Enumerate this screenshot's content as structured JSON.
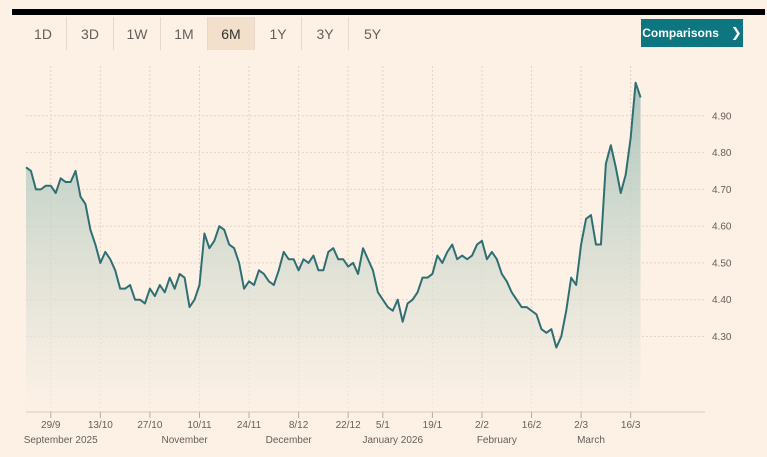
{
  "toolbar": {
    "ranges": [
      "1D",
      "3D",
      "1W",
      "1M",
      "6M",
      "1Y",
      "3Y",
      "5Y"
    ],
    "active_range": "6M",
    "comparisons_label": "Comparisons",
    "comparisons_icon": "chevron-right-icon"
  },
  "colors": {
    "background": "#fdf1e6",
    "line": "#2f6f73",
    "button": "#0d7680",
    "active_tab": "#f2dfcc"
  },
  "chart_data": {
    "type": "area",
    "title": "",
    "xlabel": "",
    "ylabel": "",
    "ylim": [
      4.1,
      5.0
    ],
    "y_ticks": [
      4.3,
      4.4,
      4.5,
      4.6,
      4.7,
      4.8,
      4.9
    ],
    "y_tick_labels": [
      "4.30",
      "4.40",
      "4.50",
      "4.60",
      "4.70",
      "4.80",
      "4.90"
    ],
    "x_index_range": [
      0,
      137
    ],
    "x_ticks": [
      {
        "index": 5,
        "label": "29/9"
      },
      {
        "index": 15,
        "label": "13/10"
      },
      {
        "index": 25,
        "label": "27/10"
      },
      {
        "index": 35,
        "label": "10/11"
      },
      {
        "index": 45,
        "label": "24/11"
      },
      {
        "index": 55,
        "label": "8/12"
      },
      {
        "index": 65,
        "label": "22/12"
      },
      {
        "index": 72,
        "label": "5/1"
      },
      {
        "index": 82,
        "label": "19/1"
      },
      {
        "index": 92,
        "label": "2/2"
      },
      {
        "index": 102,
        "label": "16/2"
      },
      {
        "index": 112,
        "label": "2/3"
      },
      {
        "index": 122,
        "label": "16/3"
      }
    ],
    "month_labels": [
      {
        "index": 7,
        "label": "September 2025"
      },
      {
        "index": 32,
        "label": "November"
      },
      {
        "index": 53,
        "label": "December"
      },
      {
        "index": 74,
        "label": "January 2026"
      },
      {
        "index": 95,
        "label": "February"
      },
      {
        "index": 114,
        "label": "March"
      }
    ],
    "series": [
      {
        "name": "value",
        "values": [
          4.76,
          4.75,
          4.7,
          4.7,
          4.71,
          4.71,
          4.69,
          4.73,
          4.72,
          4.72,
          4.75,
          4.68,
          4.66,
          4.59,
          4.55,
          4.5,
          4.53,
          4.51,
          4.48,
          4.43,
          4.43,
          4.44,
          4.4,
          4.4,
          4.39,
          4.43,
          4.41,
          4.44,
          4.42,
          4.46,
          4.43,
          4.47,
          4.46,
          4.38,
          4.4,
          4.44,
          4.58,
          4.54,
          4.56,
          4.6,
          4.59,
          4.55,
          4.54,
          4.5,
          4.43,
          4.45,
          4.44,
          4.48,
          4.47,
          4.45,
          4.44,
          4.48,
          4.53,
          4.51,
          4.51,
          4.48,
          4.51,
          4.5,
          4.52,
          4.48,
          4.48,
          4.53,
          4.54,
          4.51,
          4.51,
          4.49,
          4.5,
          4.47,
          4.54,
          4.51,
          4.48,
          4.42,
          4.4,
          4.38,
          4.37,
          4.4,
          4.34,
          4.39,
          4.4,
          4.42,
          4.46,
          4.46,
          4.47,
          4.52,
          4.5,
          4.53,
          4.55,
          4.51,
          4.52,
          4.51,
          4.52,
          4.55,
          4.56,
          4.51,
          4.53,
          4.51,
          4.47,
          4.45,
          4.42,
          4.4,
          4.38,
          4.38,
          4.37,
          4.36,
          4.32,
          4.31,
          4.32,
          4.27,
          4.3,
          4.37,
          4.46,
          4.44,
          4.55,
          4.62,
          4.63,
          4.55,
          4.55,
          4.77,
          4.82,
          4.76,
          4.69,
          4.74,
          4.84,
          4.99,
          4.95
        ]
      }
    ],
    "legend": "none",
    "grid": true
  }
}
